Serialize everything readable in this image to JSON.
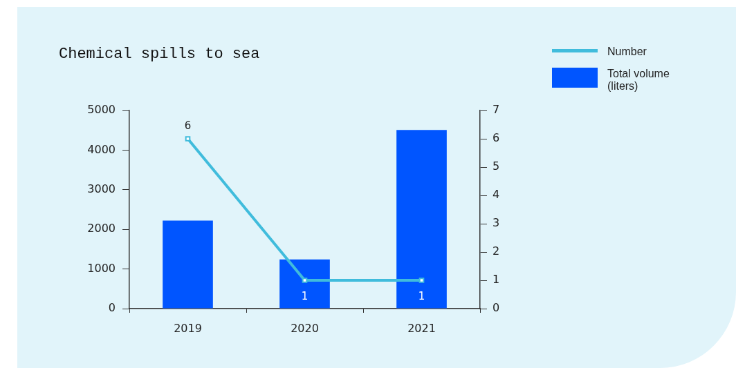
{
  "chart_data": {
    "type": "bar",
    "title": "Chemical spills to sea",
    "categories": [
      "2019",
      "2020",
      "2021"
    ],
    "series": [
      {
        "name": "Number",
        "type": "line",
        "axis": "y2",
        "color": "#40bcdc",
        "values": [
          6,
          1,
          1
        ],
        "value_labels": [
          "6",
          "1",
          "1"
        ]
      },
      {
        "name": "Total volume (liters)",
        "color": "#0055ff",
        "values": [
          2220,
          1240,
          4510
        ]
      }
    ],
    "ylim": [
      0,
      5000
    ],
    "yticks": [
      0,
      1000,
      2000,
      3000,
      4000,
      5000
    ],
    "y2lim": [
      0,
      7
    ],
    "y2ticks": [
      0,
      1,
      2,
      3,
      4,
      5,
      6,
      7
    ],
    "grid": false,
    "legend": "top right",
    "marker": "square"
  }
}
